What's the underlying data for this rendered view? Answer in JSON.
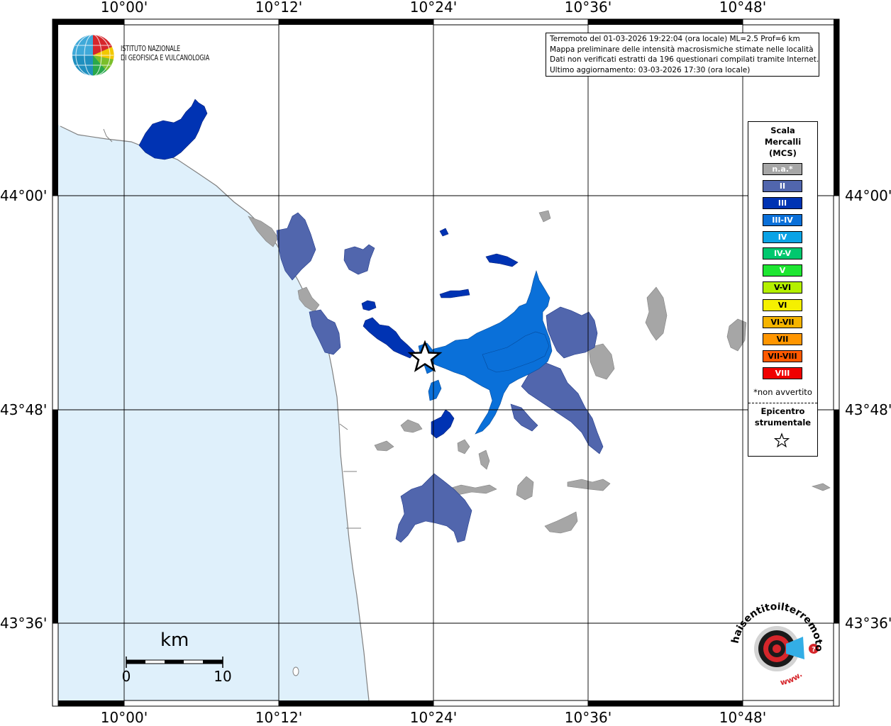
{
  "map": {
    "longitude_labels": [
      "10°00'",
      "10°12'",
      "10°24'",
      "10°36'",
      "10°48'"
    ],
    "latitude_labels": [
      "44°00'",
      "43°48'",
      "43°36'"
    ],
    "colors": {
      "sea": "#dff0fb",
      "land": "#ffffff",
      "coast": "#808080",
      "grid": "#000000"
    }
  },
  "logo": {
    "line1": "ISTITUTO NAZIONALE",
    "line2": "DI GEOFISICA E VULCANOLOGIA"
  },
  "info": {
    "line1": "Terremoto del 01-03-2026 19:22:04 (ora locale) ML=2.5 Prof=6 km",
    "line2": "Mappa preliminare delle intensità macrosismiche stimate nelle località",
    "line3": "Dati non verificati estratti da 196 questionari compilati tramite Internet.",
    "line4": "Ultimo aggiornamento: 03-03-2026 17:30 (ora locale)"
  },
  "legend": {
    "title_line1": "Scala",
    "title_line2": "Mercalli",
    "title_line3": "(MCS)",
    "classes": [
      {
        "label": "n.a.*",
        "color": "#a6a6a6"
      },
      {
        "label": "II",
        "color": "#5166ad"
      },
      {
        "label": "III",
        "color": "#0033b3"
      },
      {
        "label": "III-IV",
        "color": "#0a70d9"
      },
      {
        "label": "IV",
        "color": "#0aa3e6"
      },
      {
        "label": "IV-V",
        "color": "#00c86e"
      },
      {
        "label": "V",
        "color": "#1ee632"
      },
      {
        "label": "V-VI",
        "color": "#b4f000"
      },
      {
        "label": "VI",
        "color": "#f5f000"
      },
      {
        "label": "VI-VII",
        "color": "#f5b400"
      },
      {
        "label": "VII",
        "color": "#ff9600"
      },
      {
        "label": "VII-VIII",
        "color": "#ff5a00"
      },
      {
        "label": "VIII",
        "color": "#f00000"
      }
    ],
    "note": "*non avvertito",
    "epicenter_line1": "Epicentro",
    "epicenter_line2": "strumentale"
  },
  "scalebar": {
    "unit": "km",
    "min": "0",
    "max": "10"
  },
  "haisentito": {
    "brand": "haisentitoilterremoto.it",
    "prefix": "www."
  }
}
